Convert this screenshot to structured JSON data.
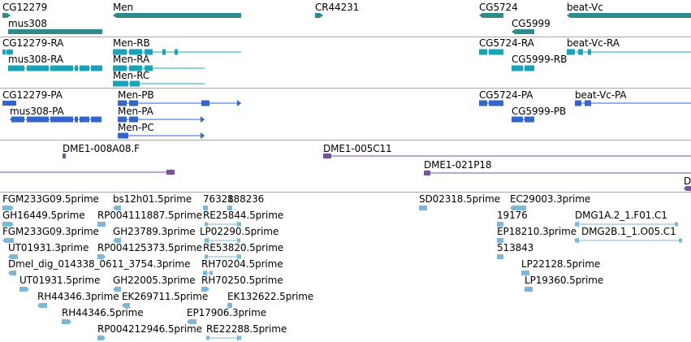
{
  "colors": {
    "genes": "#2e8b8b",
    "gene_models": "#1aa3b8",
    "proteins": "#3366cc",
    "clones": "#7752a0",
    "ests": "#7cb7d9",
    "divider": "#a9a9a9"
  },
  "tracks": {
    "genes": {
      "labels": [
        "CG12279",
        "Men",
        "CR44231",
        "CG5724",
        "beat-Vc",
        "mus308",
        "CG5999"
      ]
    },
    "transcripts": {
      "labels": [
        "CG12279-RA",
        "Men-RB",
        "CG5724-RA",
        "beat-Vc-RA",
        "mus308-RA",
        "Men-RA",
        "CG5999-RB",
        "Men-RC"
      ]
    },
    "polypeptides": {
      "labels": [
        "CG12279-PA",
        "Men-PB",
        "CG5724-PA",
        "beat-Vc-PA",
        "mus308-PA",
        "Men-PA",
        "CG5999-PB",
        "Men-PC"
      ]
    },
    "clones": {
      "labels": [
        "DME1-008A08.F",
        "DME1-005C11",
        "DME1-021P18",
        "D"
      ]
    },
    "ests": {
      "labels": [
        "FGM233G09.5prime",
        "bs12h01.5prime",
        "76328",
        "188236",
        "SD02318.5prime",
        "EC29003.3prime",
        "GH16449.5prime",
        "RP004111887.5prime",
        "RE25844.5prime",
        "19176",
        "DMG1A.2_1.F01.C1",
        "FGM233G09.3prime",
        "GH23789.3prime",
        "LP02290.5prime",
        "EP18210.3prime",
        "DMG2B.1_1.O05.C1",
        "UT01931.3prime",
        "RP004125373.5prime",
        "RE53820.5prime",
        "513843",
        "Dmel_dig_014338_0611_3754.3prime",
        "RH70204.5prime",
        "LP22128.5prime",
        "UT01931.5prime",
        "GH22005.3prime",
        "RH70250.5prime",
        "LP19360.5prime",
        "RH44346.3prime",
        "EK269711.5prime",
        "EK132622.5prime",
        "RH44346.5prime",
        "EP17906.3prime",
        "RP004212946.5prime",
        "RE22288.5prime"
      ]
    }
  }
}
